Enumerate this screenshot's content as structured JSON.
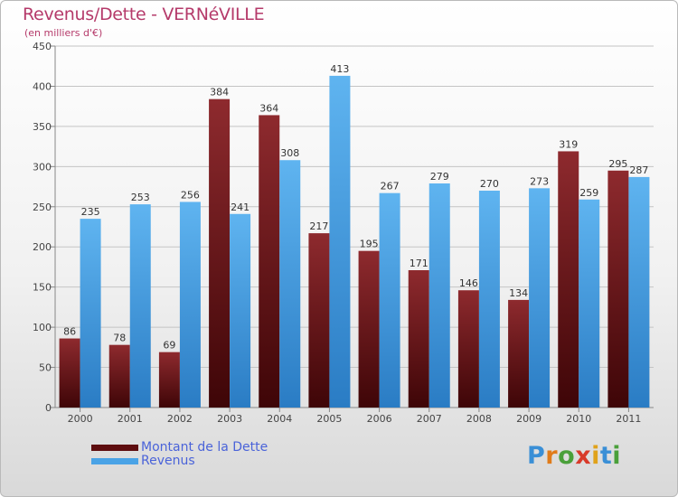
{
  "title": "Revenus/Dette - VERNéVILLE",
  "subtitle": "(en milliers d'€)",
  "logo": {
    "text": "Proxiti",
    "letter_colors": [
      "#3a8fd6",
      "#e07b1a",
      "#4aa03a",
      "#d83a2a",
      "#e0a21a",
      "#3a8fd6",
      "#4aa03a"
    ]
  },
  "colors": {
    "dette": "#7a1a1e",
    "revenus": "#4aa3e6",
    "title": "#b53a6a",
    "legend_text": "#4a63d9"
  },
  "legend": [
    {
      "label": "Montant de la Dette",
      "color": "#5e0d0f"
    },
    {
      "label": "Revenus",
      "color": "#4aa3e6"
    }
  ],
  "chart_data": {
    "type": "bar",
    "categories": [
      "2000",
      "2001",
      "2002",
      "2003",
      "2004",
      "2005",
      "2006",
      "2007",
      "2008",
      "2009",
      "2010",
      "2011"
    ],
    "series": [
      {
        "name": "Montant de la Dette",
        "values": [
          86,
          78,
          69,
          384,
          364,
          217,
          195,
          171,
          146,
          134,
          319,
          295
        ]
      },
      {
        "name": "Revenus",
        "values": [
          235,
          253,
          256,
          241,
          308,
          413,
          267,
          279,
          270,
          273,
          259,
          287
        ]
      }
    ],
    "ylim": [
      0,
      450
    ],
    "yticks": [
      "0",
      "50",
      "100",
      "150",
      "200",
      "250",
      "300",
      "350",
      "400",
      "450"
    ],
    "grid": true,
    "legend_position": "bottom-left"
  }
}
